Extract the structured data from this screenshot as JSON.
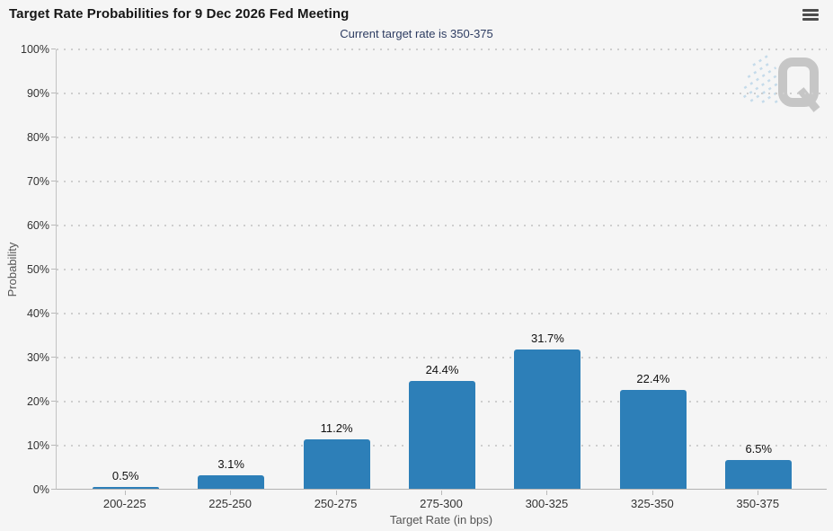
{
  "header": {
    "title": "Target Rate Probabilities for 9 Dec 2026 Fed Meeting",
    "menu_icon": "hamburger-icon"
  },
  "watermark": {
    "icon": "q-logo",
    "letter": "Q"
  },
  "chart_data": {
    "type": "bar",
    "title": "Target Rate Probabilities for 9 Dec 2026 Fed Meeting",
    "subtitle": "Current target rate is 350-375",
    "categories": [
      "200-225",
      "225-250",
      "250-275",
      "275-300",
      "300-325",
      "325-350",
      "350-375"
    ],
    "values": [
      0.5,
      3.1,
      11.2,
      24.4,
      31.7,
      22.4,
      6.5
    ],
    "value_labels": [
      "0.5%",
      "3.1%",
      "11.2%",
      "24.4%",
      "31.7%",
      "22.4%",
      "6.5%"
    ],
    "xlabel": "Target Rate (in bps)",
    "ylabel": "Probability",
    "ylim": [
      0,
      100
    ],
    "ytick_interval": 10,
    "yticks": [
      "0%",
      "10%",
      "20%",
      "30%",
      "40%",
      "50%",
      "60%",
      "70%",
      "80%",
      "90%",
      "100%"
    ],
    "grid": "horizontal-dotted",
    "legend": "none",
    "bar_color": "#2d7fb8",
    "background_color": "#f5f5f5",
    "subtitle_color": "#2e3d62"
  }
}
